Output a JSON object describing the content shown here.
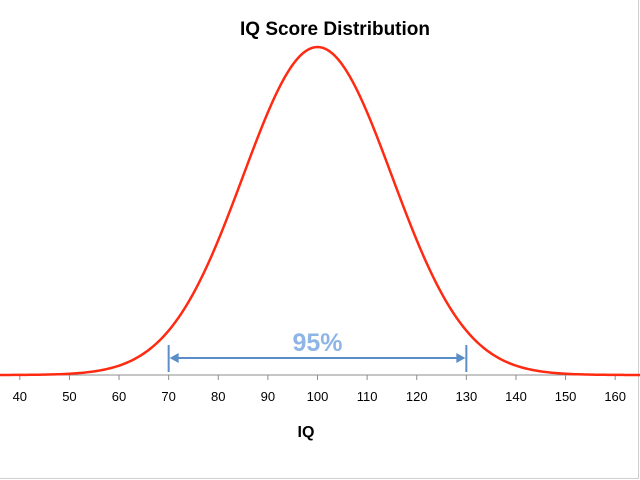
{
  "chart_data": {
    "type": "line",
    "title": "IQ Score Distribution",
    "xlabel": "IQ",
    "ylabel": "",
    "xlim": [
      35,
      165
    ],
    "x_ticks": [
      40,
      50,
      60,
      70,
      80,
      90,
      100,
      110,
      120,
      130,
      140,
      150,
      160
    ],
    "series": [
      {
        "distribution": "normal",
        "mean": 100,
        "sd": 15,
        "x": [
          35,
          40,
          45,
          50,
          55,
          60,
          65,
          70,
          75,
          80,
          85,
          90,
          95,
          100,
          105,
          110,
          115,
          120,
          125,
          130,
          135,
          140,
          145,
          150,
          155,
          160,
          165
        ],
        "y": [
          0.0,
          0.0,
          0.001,
          0.004,
          0.011,
          0.028,
          0.066,
          0.135,
          0.249,
          0.411,
          0.607,
          0.801,
          0.946,
          1.0,
          0.946,
          0.801,
          0.607,
          0.411,
          0.249,
          0.135,
          0.066,
          0.028,
          0.011,
          0.004,
          0.001,
          0.0,
          0.0
        ],
        "color": "#ff2a12"
      }
    ],
    "annotation": {
      "text": "95%",
      "x_start": 70,
      "x_end": 130,
      "color": "#5b8ec9",
      "text_color": "#8fb5e6"
    },
    "grid": false,
    "legend": "none"
  }
}
